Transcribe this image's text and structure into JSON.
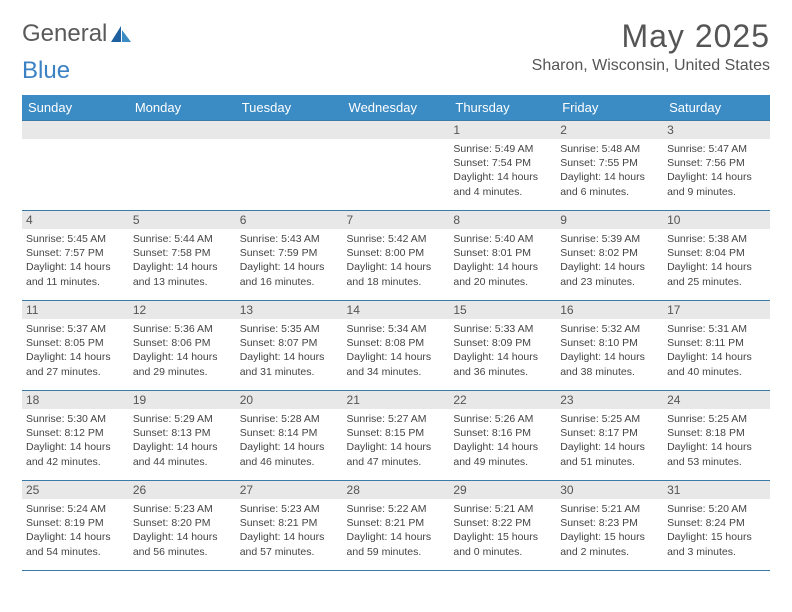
{
  "brand": {
    "part1": "General",
    "part2": "Blue"
  },
  "title": "May 2025",
  "location": "Sharon, Wisconsin, United States",
  "colors": {
    "header_bg": "#3b8bc4",
    "border": "#3b7ba8",
    "daynum_bg": "#e8e8e8",
    "text": "#444444",
    "title": "#555555"
  },
  "dayNames": [
    "Sunday",
    "Monday",
    "Tuesday",
    "Wednesday",
    "Thursday",
    "Friday",
    "Saturday"
  ],
  "weeks": [
    [
      {
        "empty": true
      },
      {
        "empty": true
      },
      {
        "empty": true
      },
      {
        "empty": true
      },
      {
        "num": "1",
        "sunrise": "5:49 AM",
        "sunset": "7:54 PM",
        "daylight": "14 hours and 4 minutes."
      },
      {
        "num": "2",
        "sunrise": "5:48 AM",
        "sunset": "7:55 PM",
        "daylight": "14 hours and 6 minutes."
      },
      {
        "num": "3",
        "sunrise": "5:47 AM",
        "sunset": "7:56 PM",
        "daylight": "14 hours and 9 minutes."
      }
    ],
    [
      {
        "num": "4",
        "sunrise": "5:45 AM",
        "sunset": "7:57 PM",
        "daylight": "14 hours and 11 minutes."
      },
      {
        "num": "5",
        "sunrise": "5:44 AM",
        "sunset": "7:58 PM",
        "daylight": "14 hours and 13 minutes."
      },
      {
        "num": "6",
        "sunrise": "5:43 AM",
        "sunset": "7:59 PM",
        "daylight": "14 hours and 16 minutes."
      },
      {
        "num": "7",
        "sunrise": "5:42 AM",
        "sunset": "8:00 PM",
        "daylight": "14 hours and 18 minutes."
      },
      {
        "num": "8",
        "sunrise": "5:40 AM",
        "sunset": "8:01 PM",
        "daylight": "14 hours and 20 minutes."
      },
      {
        "num": "9",
        "sunrise": "5:39 AM",
        "sunset": "8:02 PM",
        "daylight": "14 hours and 23 minutes."
      },
      {
        "num": "10",
        "sunrise": "5:38 AM",
        "sunset": "8:04 PM",
        "daylight": "14 hours and 25 minutes."
      }
    ],
    [
      {
        "num": "11",
        "sunrise": "5:37 AM",
        "sunset": "8:05 PM",
        "daylight": "14 hours and 27 minutes."
      },
      {
        "num": "12",
        "sunrise": "5:36 AM",
        "sunset": "8:06 PM",
        "daylight": "14 hours and 29 minutes."
      },
      {
        "num": "13",
        "sunrise": "5:35 AM",
        "sunset": "8:07 PM",
        "daylight": "14 hours and 31 minutes."
      },
      {
        "num": "14",
        "sunrise": "5:34 AM",
        "sunset": "8:08 PM",
        "daylight": "14 hours and 34 minutes."
      },
      {
        "num": "15",
        "sunrise": "5:33 AM",
        "sunset": "8:09 PM",
        "daylight": "14 hours and 36 minutes."
      },
      {
        "num": "16",
        "sunrise": "5:32 AM",
        "sunset": "8:10 PM",
        "daylight": "14 hours and 38 minutes."
      },
      {
        "num": "17",
        "sunrise": "5:31 AM",
        "sunset": "8:11 PM",
        "daylight": "14 hours and 40 minutes."
      }
    ],
    [
      {
        "num": "18",
        "sunrise": "5:30 AM",
        "sunset": "8:12 PM",
        "daylight": "14 hours and 42 minutes."
      },
      {
        "num": "19",
        "sunrise": "5:29 AM",
        "sunset": "8:13 PM",
        "daylight": "14 hours and 44 minutes."
      },
      {
        "num": "20",
        "sunrise": "5:28 AM",
        "sunset": "8:14 PM",
        "daylight": "14 hours and 46 minutes."
      },
      {
        "num": "21",
        "sunrise": "5:27 AM",
        "sunset": "8:15 PM",
        "daylight": "14 hours and 47 minutes."
      },
      {
        "num": "22",
        "sunrise": "5:26 AM",
        "sunset": "8:16 PM",
        "daylight": "14 hours and 49 minutes."
      },
      {
        "num": "23",
        "sunrise": "5:25 AM",
        "sunset": "8:17 PM",
        "daylight": "14 hours and 51 minutes."
      },
      {
        "num": "24",
        "sunrise": "5:25 AM",
        "sunset": "8:18 PM",
        "daylight": "14 hours and 53 minutes."
      }
    ],
    [
      {
        "num": "25",
        "sunrise": "5:24 AM",
        "sunset": "8:19 PM",
        "daylight": "14 hours and 54 minutes."
      },
      {
        "num": "26",
        "sunrise": "5:23 AM",
        "sunset": "8:20 PM",
        "daylight": "14 hours and 56 minutes."
      },
      {
        "num": "27",
        "sunrise": "5:23 AM",
        "sunset": "8:21 PM",
        "daylight": "14 hours and 57 minutes."
      },
      {
        "num": "28",
        "sunrise": "5:22 AM",
        "sunset": "8:21 PM",
        "daylight": "14 hours and 59 minutes."
      },
      {
        "num": "29",
        "sunrise": "5:21 AM",
        "sunset": "8:22 PM",
        "daylight": "15 hours and 0 minutes."
      },
      {
        "num": "30",
        "sunrise": "5:21 AM",
        "sunset": "8:23 PM",
        "daylight": "15 hours and 2 minutes."
      },
      {
        "num": "31",
        "sunrise": "5:20 AM",
        "sunset": "8:24 PM",
        "daylight": "15 hours and 3 minutes."
      }
    ]
  ],
  "labels": {
    "sunrise": "Sunrise:",
    "sunset": "Sunset:",
    "daylight": "Daylight:"
  }
}
